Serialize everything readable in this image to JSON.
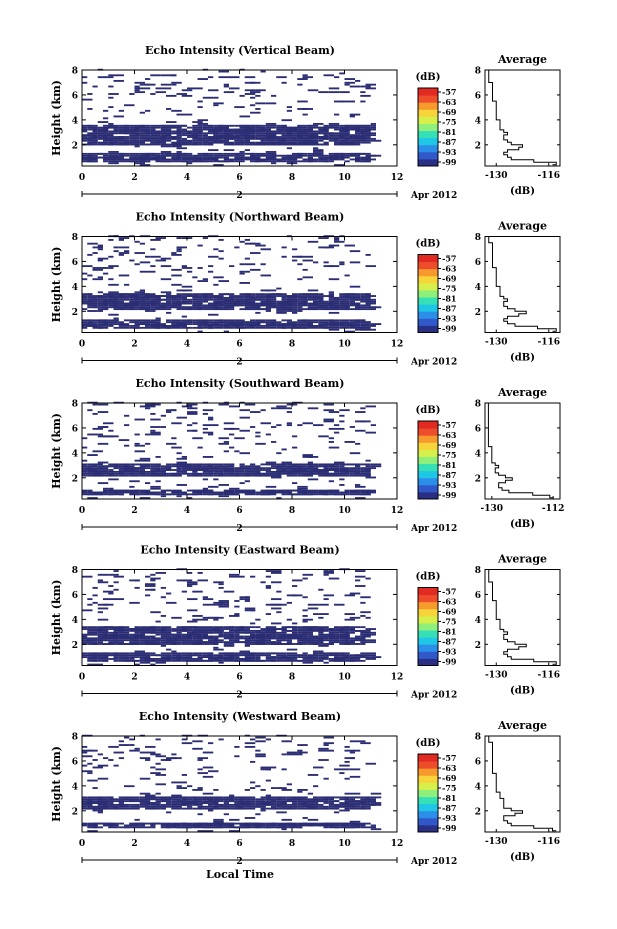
{
  "figure": {
    "xlabel": "Local Time",
    "date_label": "2 Apr 2012"
  },
  "colorbar": {
    "unit": "(dB)",
    "ticks": [
      "-57",
      "-63",
      "-69",
      "-75",
      "-81",
      "-87",
      "-93",
      "-99"
    ],
    "colors": [
      "#2a2f86",
      "#3158c8",
      "#2b8ee8",
      "#20c6e6",
      "#36e0b6",
      "#8ef07a",
      "#d6ef4b",
      "#f6d43a",
      "#f79a2e",
      "#ee4d2c",
      "#e12a22"
    ]
  },
  "chart_data": [
    {
      "type": "heatmap",
      "title": "Echo Intensity (Vertical Beam)",
      "ylabel": "Height (km)",
      "xlim": [
        0,
        12
      ],
      "ylim": [
        0.3,
        8
      ],
      "xticks": [
        "0",
        "2",
        "4",
        "6",
        "8",
        "10",
        "12"
      ],
      "yticks": [
        "2",
        "4",
        "6",
        "8"
      ],
      "dense_bands_km": [
        [
          1.8,
          3.5
        ],
        [
          0.6,
          1.3
        ]
      ],
      "profile": {
        "title": "Average",
        "xlabel": "(dB)",
        "xticks": [
          "-130",
          "-116"
        ],
        "xlim": [
          -133,
          -113
        ],
        "yticks": [
          "2",
          "4",
          "6",
          "8"
        ],
        "heights": [
          0.4,
          0.6,
          0.8,
          1.0,
          1.2,
          1.4,
          1.6,
          1.8,
          2.0,
          2.2,
          2.4,
          2.6,
          2.8,
          3.0,
          3.2,
          3.5,
          4.0,
          4.5,
          5.0,
          5.5,
          6.0,
          6.5,
          7.0,
          7.5,
          8.0
        ],
        "values": [
          -115,
          -114,
          -120,
          -126,
          -127,
          -128,
          -127,
          -124,
          -123,
          -126,
          -127,
          -128,
          -128,
          -127,
          -128,
          -129,
          -129,
          -130,
          -130,
          -130,
          -131,
          -131,
          -131,
          -132,
          -132
        ]
      }
    },
    {
      "type": "heatmap",
      "title": "Echo Intensity (Northward Beam)",
      "ylabel": "Height (km)",
      "xlim": [
        0,
        12
      ],
      "ylim": [
        0.3,
        8
      ],
      "xticks": [
        "0",
        "2",
        "4",
        "6",
        "8",
        "10",
        "12"
      ],
      "yticks": [
        "2",
        "4",
        "6",
        "8"
      ],
      "dense_bands_km": [
        [
          2.0,
          3.4
        ],
        [
          0.6,
          1.3
        ]
      ],
      "profile": {
        "title": "Average",
        "xlabel": "(dB)",
        "xticks": [
          "-130",
          "-116"
        ],
        "xlim": [
          -133,
          -113
        ],
        "yticks": [
          "2",
          "4",
          "6",
          "8"
        ],
        "heights": [
          0.4,
          0.6,
          0.8,
          1.0,
          1.2,
          1.4,
          1.6,
          1.8,
          2.0,
          2.2,
          2.4,
          2.6,
          2.8,
          3.0,
          3.2,
          3.5,
          4.0,
          4.5,
          5.0,
          5.5,
          6.0,
          6.5,
          7.0,
          7.5,
          8.0
        ],
        "values": [
          -115,
          -114,
          -119,
          -125,
          -127,
          -128,
          -127,
          -124,
          -122,
          -125,
          -127,
          -128,
          -128,
          -127,
          -128,
          -129,
          -129,
          -130,
          -130,
          -130,
          -131,
          -131,
          -131,
          -131,
          -132
        ]
      }
    },
    {
      "type": "heatmap",
      "title": "Echo Intensity (Southward Beam)",
      "ylabel": "Height (km)",
      "xlim": [
        0,
        12
      ],
      "ylim": [
        0.3,
        8
      ],
      "xticks": [
        "0",
        "2",
        "4",
        "6",
        "8",
        "10",
        "12"
      ],
      "yticks": [
        "2",
        "4",
        "6",
        "8"
      ],
      "dense_bands_km": [
        [
          2.0,
          3.1
        ],
        [
          0.5,
          0.9
        ]
      ],
      "profile": {
        "title": "Average",
        "xlabel": "(dB)",
        "xticks": [
          "-130",
          "-112"
        ],
        "xlim": [
          -132,
          -110
        ],
        "yticks": [
          "2",
          "4",
          "6",
          "8"
        ],
        "heights": [
          0.4,
          0.6,
          0.8,
          1.0,
          1.2,
          1.4,
          1.6,
          1.8,
          2.0,
          2.2,
          2.4,
          2.6,
          2.8,
          3.0,
          3.2,
          3.5,
          4.0,
          4.5,
          5.0,
          5.5,
          6.0,
          6.5,
          7.0,
          7.5,
          8.0
        ],
        "values": [
          -112,
          -113,
          -118,
          -125,
          -127,
          -128,
          -128,
          -126,
          -124,
          -126,
          -128,
          -129,
          -129,
          -128,
          -129,
          -130,
          -130,
          -130,
          -131,
          -131,
          -131,
          -131,
          -131,
          -131,
          -131
        ]
      }
    },
    {
      "type": "heatmap",
      "title": "Echo Intensity (Eastward Beam)",
      "ylabel": "Height (km)",
      "xlim": [
        0,
        12
      ],
      "ylim": [
        0.3,
        8
      ],
      "xticks": [
        "0",
        "2",
        "4",
        "6",
        "8",
        "10",
        "12"
      ],
      "yticks": [
        "2",
        "4",
        "6",
        "8"
      ],
      "dense_bands_km": [
        [
          1.9,
          3.3
        ],
        [
          0.6,
          1.2
        ]
      ],
      "profile": {
        "title": "Average",
        "xlabel": "(dB)",
        "xticks": [
          "-130",
          "-116"
        ],
        "xlim": [
          -133,
          -113
        ],
        "yticks": [
          "2",
          "4",
          "6",
          "8"
        ],
        "heights": [
          0.4,
          0.6,
          0.8,
          1.0,
          1.2,
          1.4,
          1.6,
          1.8,
          2.0,
          2.2,
          2.4,
          2.6,
          2.8,
          3.0,
          3.2,
          3.5,
          4.0,
          4.5,
          5.0,
          5.5,
          6.0,
          6.5,
          7.0,
          7.5,
          8.0
        ],
        "values": [
          -115,
          -114,
          -120,
          -126,
          -127,
          -128,
          -127,
          -124,
          -122,
          -125,
          -127,
          -128,
          -128,
          -127,
          -128,
          -129,
          -129,
          -130,
          -130,
          -130,
          -131,
          -131,
          -131,
          -132,
          -132
        ]
      }
    },
    {
      "type": "heatmap",
      "title": "Echo Intensity (Westward Beam)",
      "ylabel": "Height (km)",
      "xlim": [
        0,
        12
      ],
      "ylim": [
        0.3,
        8
      ],
      "xticks": [
        "0",
        "2",
        "4",
        "6",
        "8",
        "10",
        "12"
      ],
      "yticks": [
        "2",
        "4",
        "6",
        "8"
      ],
      "dense_bands_km": [
        [
          2.0,
          3.0
        ],
        [
          0.5,
          0.9
        ]
      ],
      "profile": {
        "title": "Average",
        "xlabel": "(dB)",
        "xticks": [
          "-130",
          "-116"
        ],
        "xlim": [
          -133,
          -113
        ],
        "yticks": [
          "2",
          "4",
          "6",
          "8"
        ],
        "heights": [
          0.4,
          0.6,
          0.8,
          1.0,
          1.2,
          1.4,
          1.6,
          1.8,
          2.0,
          2.2,
          2.4,
          2.6,
          2.8,
          3.0,
          3.2,
          3.5,
          4.0,
          4.5,
          5.0,
          5.5,
          6.0,
          6.5,
          7.0,
          7.5,
          8.0
        ],
        "values": [
          -114,
          -115,
          -120,
          -126,
          -127,
          -128,
          -128,
          -125,
          -123,
          -126,
          -128,
          -128,
          -128,
          -128,
          -129,
          -129,
          -130,
          -130,
          -130,
          -131,
          -131,
          -131,
          -131,
          -131,
          -132
        ]
      }
    }
  ]
}
